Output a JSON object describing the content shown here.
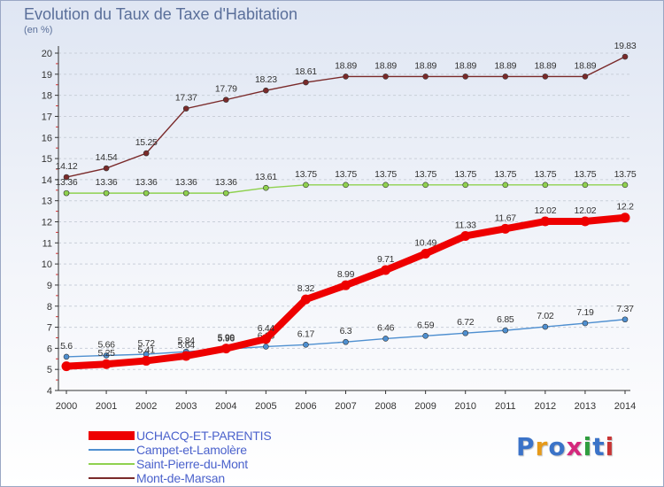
{
  "title": "Evolution du Taux de Taxe d'Habitation",
  "unit_label": "(en %)",
  "logo": {
    "text": "Proxiti",
    "colors": [
      "#3b73c8",
      "#e69a1a",
      "#3b73c8",
      "#d4287c",
      "#2f9d3e",
      "#3b73c8",
      "#c83535"
    ]
  },
  "chart_data": {
    "type": "line",
    "title": "Evolution du Taux de Taxe d'Habitation",
    "ylabel": "(en %)",
    "ylim": [
      4,
      20
    ],
    "yticks": [
      4,
      5,
      6,
      7,
      8,
      9,
      10,
      11,
      12,
      13,
      14,
      15,
      16,
      17,
      18,
      19,
      20
    ],
    "x": [
      "2000",
      "2001",
      "2002",
      "2003",
      "2004",
      "2005",
      "2006",
      "2007",
      "2008",
      "2009",
      "2010",
      "2011",
      "2012",
      "2013",
      "2014"
    ],
    "grid": "horizontal-dashed",
    "legend_position": "bottom-left",
    "series": [
      {
        "name": "UCHACQ-ET-PARENTIS",
        "color": "#ee0000",
        "emphasis": true,
        "values": [
          5.15,
          5.25,
          5.41,
          5.64,
          5.99,
          6.44,
          8.32,
          8.99,
          9.71,
          10.49,
          11.33,
          11.67,
          12.02,
          12.02,
          12.2
        ],
        "labels": [
          "",
          "5.25",
          "5.41",
          "5.64",
          "5.99",
          "6.44",
          "8.32",
          "8.99",
          "9.71",
          "10.49",
          "11.33",
          "11.67",
          "12.02",
          "12.02",
          "12.2"
        ]
      },
      {
        "name": "Campet-et-Lamolère",
        "color": "#4e8fd0",
        "values": [
          5.6,
          5.66,
          5.72,
          5.84,
          5.96,
          6.08,
          6.17,
          6.3,
          6.46,
          6.59,
          6.72,
          6.85,
          7.02,
          7.19,
          7.37
        ],
        "labels": [
          "5.6",
          "5.66",
          "5.72",
          "5.84",
          "5.96",
          "6.08",
          "6.17",
          "6.3",
          "6.46",
          "6.59",
          "6.72",
          "6.85",
          "7.02",
          "7.19",
          "7.37"
        ]
      },
      {
        "name": "Saint-Pierre-du-Mont",
        "color": "#8fd14f",
        "values": [
          13.36,
          13.36,
          13.36,
          13.36,
          13.36,
          13.61,
          13.75,
          13.75,
          13.75,
          13.75,
          13.75,
          13.75,
          13.75,
          13.75,
          13.75
        ],
        "labels": [
          "13.36",
          "13.36",
          "13.36",
          "13.36",
          "13.36",
          "13.61",
          "13.75",
          "13.75",
          "13.75",
          "13.75",
          "13.75",
          "13.75",
          "13.75",
          "13.75",
          "13.75"
        ]
      },
      {
        "name": "Mont-de-Marsan",
        "color": "#7a2a2a",
        "values": [
          14.12,
          14.54,
          15.25,
          17.37,
          17.79,
          18.23,
          18.61,
          18.89,
          18.89,
          18.89,
          18.89,
          18.89,
          18.89,
          18.89,
          19.83
        ],
        "labels": [
          "14.12",
          "14.54",
          "15.25",
          "17.37",
          "17.79",
          "18.23",
          "18.61",
          "18.89",
          "18.89",
          "18.89",
          "18.89",
          "18.89",
          "18.89",
          "18.89",
          "19.83"
        ]
      }
    ]
  }
}
